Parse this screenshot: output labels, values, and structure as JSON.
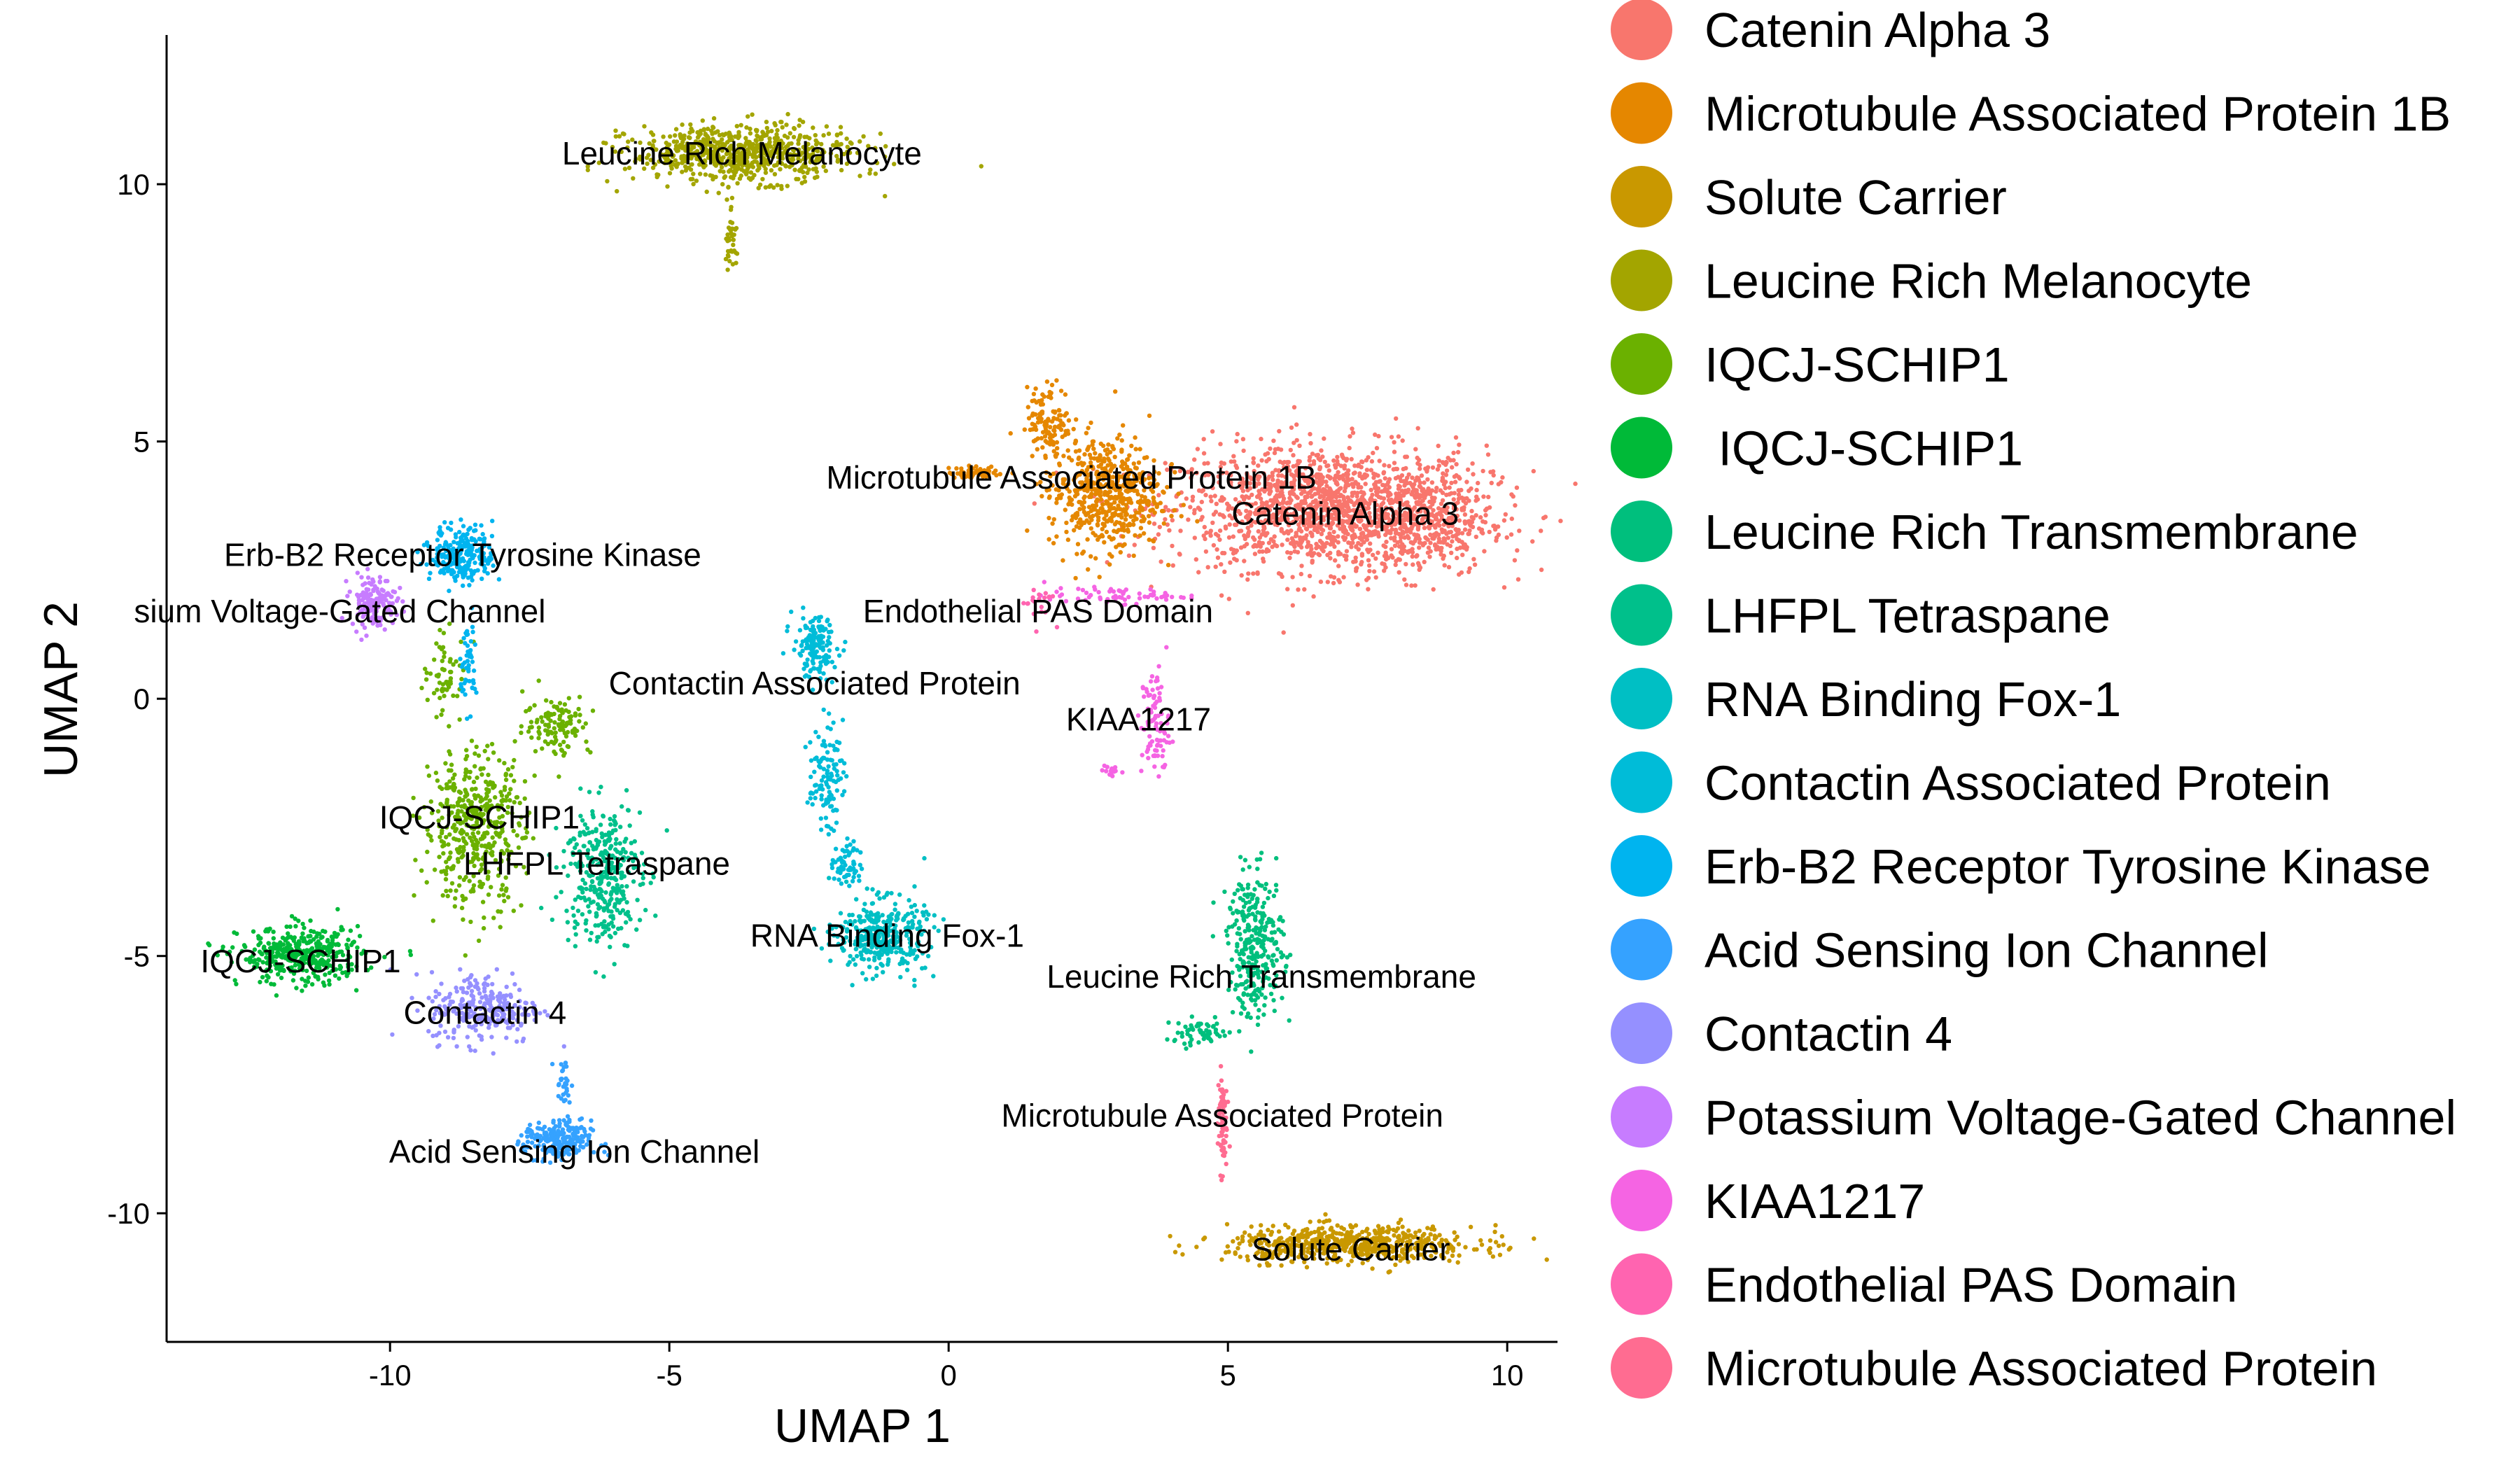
{
  "chart_data": {
    "type": "scatter",
    "xlabel": "UMAP 1",
    "ylabel": "UMAP 2",
    "xlim": [
      -14,
      10.9
    ],
    "ylim": [
      -12.5,
      12.9
    ],
    "x_ticks": [
      -10,
      -5,
      0,
      5,
      10
    ],
    "x_tick_labels": [
      "-10",
      "-5",
      "0",
      "5",
      "10"
    ],
    "y_ticks": [
      -10,
      -5,
      0,
      5,
      10
    ],
    "y_tick_labels": [
      "-10",
      "-5",
      "0",
      "5",
      "10"
    ],
    "grid": false,
    "legend_position": "right",
    "clusters": [
      {
        "name": "Catenin Alpha 3",
        "color": "#F8766D",
        "label_pos": [
          7.0,
          3.6
        ],
        "shape": [
          [
            6.8,
            3.7,
            2.8,
            1.2,
            1500
          ],
          [
            8.5,
            3.4,
            1.2,
            1.0,
            300
          ]
        ]
      },
      {
        "name": "Microtubule Associated Protein 1B",
        "color": "#E58700",
        "label_pos": [
          4.5,
          4.2
        ],
        "shape": [
          [
            2.8,
            4.0,
            1.0,
            1.1,
            550
          ],
          [
            1.8,
            5.4,
            0.4,
            0.7,
            120
          ],
          [
            0.5,
            4.4,
            0.5,
            0.12,
            60
          ]
        ]
      },
      {
        "name": "Solute Carrier",
        "color": "#C99800",
        "label_pos": [
          7.1,
          -10.7
        ],
        "shape": [
          [
            7.2,
            -10.6,
            2.2,
            0.35,
            600
          ]
        ]
      },
      {
        "name": "Leucine Rich Melanocyte",
        "color": "#A3A500",
        "label_pos": [
          -3.7,
          10.6
        ],
        "shape": [
          [
            -3.7,
            10.6,
            2.0,
            0.55,
            700
          ],
          [
            -3.9,
            9.0,
            0.1,
            0.8,
            40
          ]
        ]
      },
      {
        "name": "IQCJ-SCHIP1",
        "color": "#6BB100",
        "label_pos": [
          -8.5,
          -2.2
        ],
        "shape": [
          [
            -8.5,
            -2.5,
            0.9,
            1.5,
            450
          ],
          [
            -7.0,
            -0.5,
            0.6,
            0.6,
            120
          ],
          [
            -9.0,
            0.5,
            0.4,
            0.7,
            60
          ]
        ]
      },
      {
        "name": " IQCJ-SCHIP1",
        "color": "#00BA38",
        "label_pos": [
          -11.6,
          -5.1
        ],
        "shape": [
          [
            -11.6,
            -5.0,
            1.1,
            0.55,
            400
          ]
        ]
      },
      {
        "name": "Leucine Rich Transmembrane",
        "color": "#00BF7D",
        "label_pos": [
          5.7,
          -5.4
        ],
        "shape": [
          [
            5.5,
            -4.8,
            0.5,
            1.4,
            300
          ],
          [
            4.5,
            -6.5,
            0.6,
            0.25,
            60
          ]
        ]
      },
      {
        "name": "LHFPL Tetraspane",
        "color": "#00C08B",
        "label_pos": [
          -6.3,
          -3.3
        ],
        "shape": [
          [
            -6.2,
            -3.4,
            0.7,
            1.4,
            350
          ]
        ]
      },
      {
        "name": "RNA Binding Fox-1",
        "color": "#00BFC4",
        "label_pos": [
          -1.2,
          -4.6
        ],
        "shape": [
          [
            -1.2,
            -4.6,
            0.8,
            0.7,
            350
          ]
        ]
      },
      {
        "name": "Contactin Associated Protein",
        "color": "#00BCD8",
        "label_pos": [
          -2.0,
          -0.3
        ],
        "shape": [
          [
            -2.4,
            1.0,
            0.4,
            0.6,
            150
          ],
          [
            -2.2,
            -1.5,
            0.3,
            1.0,
            110
          ],
          [
            -1.8,
            -3.2,
            0.25,
            0.5,
            60
          ]
        ]
      },
      {
        "name": "Erb-B2 Receptor Tyrosine Kinase",
        "color": "#00B4EF",
        "label_pos": [
          -8.7,
          2.8
        ],
        "shape": [
          [
            -8.7,
            2.8,
            0.55,
            0.55,
            250
          ],
          [
            -8.6,
            0.7,
            0.15,
            0.9,
            50
          ]
        ]
      },
      {
        "name": "Acid Sensing Ion Channel",
        "color": "#35A2FF",
        "label_pos": [
          -7.0,
          -8.6
        ],
        "shape": [
          [
            -7.0,
            -8.6,
            0.6,
            0.4,
            220
          ],
          [
            -6.9,
            -7.5,
            0.15,
            0.5,
            30
          ]
        ]
      },
      {
        "name": "Contactin 4",
        "color": "#9590FF",
        "label_pos": [
          -8.3,
          -6.0
        ],
        "shape": [
          [
            -8.3,
            -6.0,
            1.0,
            0.7,
            250
          ]
        ]
      },
      {
        "name": "Potassium Voltage-Gated Channel",
        "color": "#C77CFF",
        "label_pos": [
          -10.3,
          1.7
        ],
        "shape": [
          [
            -10.3,
            1.9,
            0.4,
            0.5,
            150
          ]
        ]
      },
      {
        "name": "KIAA1217",
        "color": "#F564E3",
        "label_pos": [
          3.5,
          -0.6
        ],
        "shape": [
          [
            3.7,
            -0.5,
            0.25,
            1.1,
            90
          ],
          [
            3.0,
            2.0,
            1.3,
            0.15,
            60
          ],
          [
            2.9,
            -1.4,
            0.15,
            0.15,
            20
          ]
        ]
      },
      {
        "name": "Endothelial PAS Domain",
        "color": "#FF64B0",
        "label_pos": [
          1.6,
          1.9
        ],
        "shape": [
          [
            1.6,
            1.9,
            0.3,
            0.4,
            20
          ]
        ]
      },
      {
        "name": "Microtubule Associated Protein",
        "color": "#FF6C91",
        "label_pos": [
          4.9,
          -8.2
        ],
        "shape": [
          [
            4.9,
            -8.2,
            0.08,
            1.0,
            70
          ]
        ]
      }
    ],
    "labels": [
      {
        "text": "Leucine Rich Melanocyte",
        "x": -3.7,
        "y": 10.6
      },
      {
        "text": "Microtubule Associated Protein 1B",
        "x": 2.2,
        "y": 4.3
      },
      {
        "text": "Catenin Alpha 3",
        "x": 7.1,
        "y": 3.6
      },
      {
        "text": "Erb-B2 Receptor Tyrosine Kinase",
        "x": -8.7,
        "y": 2.8
      },
      {
        "text": "sium Voltage-Gated Channel",
        "x": -10.9,
        "y": 1.7
      },
      {
        "text": "Endothelial PAS Domain",
        "x": 1.6,
        "y": 1.7
      },
      {
        "text": "Contactin Associated Protein",
        "x": -2.4,
        "y": 0.3
      },
      {
        "text": "KIAA1217",
        "x": 3.4,
        "y": -0.4
      },
      {
        "text": "IQCJ-SCHIP1",
        "x": -8.4,
        "y": -2.3
      },
      {
        "text": "LHFPL Tetraspane",
        "x": -6.3,
        "y": -3.2
      },
      {
        "text": "RNA Binding Fox-1",
        "x": -1.1,
        "y": -4.6
      },
      {
        "text": "IQCJ-SCHIP1",
        "x": -11.6,
        "y": -5.1
      },
      {
        "text": "Leucine Rich Transmembrane",
        "x": 5.6,
        "y": -5.4
      },
      {
        "text": "Contactin 4",
        "x": -8.3,
        "y": -6.1
      },
      {
        "text": "Microtubule Associated Protein",
        "x": 4.9,
        "y": -8.1
      },
      {
        "text": "Acid Sensing Ion Channel",
        "x": -6.7,
        "y": -8.8
      },
      {
        "text": "Solute Carrier",
        "x": 7.2,
        "y": -10.7
      }
    ]
  }
}
